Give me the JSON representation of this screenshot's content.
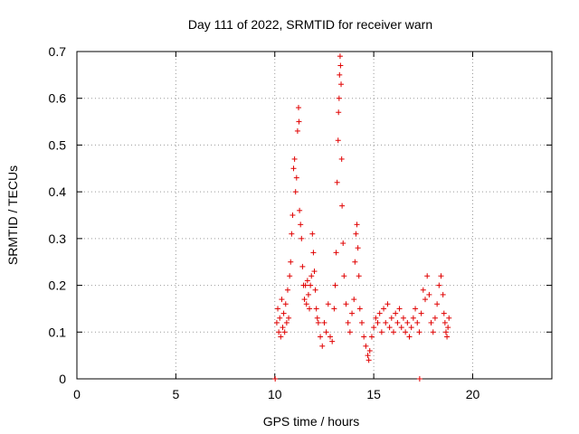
{
  "chart_data": {
    "type": "scatter",
    "title": "Day 111 of 2022, SRMTID for receiver warn",
    "xlabel": "GPS time / hours",
    "ylabel": "SRMTID / TECUs",
    "xlim": [
      0,
      24
    ],
    "ylim": [
      0,
      0.7
    ],
    "x_ticks": [
      0,
      5,
      10,
      15,
      20
    ],
    "x_tick_labels": [
      "0",
      "5",
      "10",
      "15",
      "20"
    ],
    "y_ticks": [
      0,
      0.1,
      0.2,
      0.3,
      0.4,
      0.5,
      0.6,
      0.7
    ],
    "y_tick_labels": [
      "0",
      "0.1",
      "0.2",
      "0.3",
      "0.4",
      "0.5",
      "0.6",
      "0.7"
    ],
    "grid": true,
    "marker": "+",
    "colors": {
      "series": "#e00000",
      "grid": "#999999",
      "axis": "#000000"
    },
    "series": [
      {
        "name": "SRMTID",
        "points": [
          [
            10.02,
            0.0
          ],
          [
            17.32,
            0.0
          ],
          [
            10.1,
            0.12
          ],
          [
            10.15,
            0.15
          ],
          [
            10.2,
            0.1
          ],
          [
            10.25,
            0.13
          ],
          [
            10.3,
            0.09
          ],
          [
            10.35,
            0.17
          ],
          [
            10.4,
            0.11
          ],
          [
            10.45,
            0.14
          ],
          [
            10.5,
            0.1
          ],
          [
            10.55,
            0.16
          ],
          [
            10.6,
            0.12
          ],
          [
            10.65,
            0.19
          ],
          [
            10.7,
            0.13
          ],
          [
            10.75,
            0.22
          ],
          [
            10.8,
            0.25
          ],
          [
            10.85,
            0.31
          ],
          [
            10.9,
            0.35
          ],
          [
            10.95,
            0.45
          ],
          [
            11.0,
            0.47
          ],
          [
            11.05,
            0.4
          ],
          [
            11.1,
            0.43
          ],
          [
            11.15,
            0.53
          ],
          [
            11.2,
            0.58
          ],
          [
            11.22,
            0.55
          ],
          [
            11.25,
            0.36
          ],
          [
            11.3,
            0.33
          ],
          [
            11.35,
            0.3
          ],
          [
            11.4,
            0.24
          ],
          [
            11.45,
            0.2
          ],
          [
            11.5,
            0.17
          ],
          [
            11.55,
            0.2
          ],
          [
            11.6,
            0.16
          ],
          [
            11.65,
            0.21
          ],
          [
            11.7,
            0.18
          ],
          [
            11.75,
            0.15
          ],
          [
            11.8,
            0.2
          ],
          [
            11.85,
            0.22
          ],
          [
            11.9,
            0.31
          ],
          [
            11.95,
            0.27
          ],
          [
            12.0,
            0.23
          ],
          [
            12.05,
            0.19
          ],
          [
            12.1,
            0.15
          ],
          [
            12.15,
            0.13
          ],
          [
            12.2,
            0.12
          ],
          [
            12.3,
            0.09
          ],
          [
            12.4,
            0.07
          ],
          [
            12.5,
            0.12
          ],
          [
            12.6,
            0.1
          ],
          [
            12.7,
            0.16
          ],
          [
            12.8,
            0.09
          ],
          [
            12.9,
            0.08
          ],
          [
            13.0,
            0.15
          ],
          [
            13.05,
            0.2
          ],
          [
            13.1,
            0.27
          ],
          [
            13.15,
            0.42
          ],
          [
            13.2,
            0.51
          ],
          [
            13.22,
            0.57
          ],
          [
            13.25,
            0.6
          ],
          [
            13.27,
            0.65
          ],
          [
            13.3,
            0.69
          ],
          [
            13.32,
            0.67
          ],
          [
            13.35,
            0.63
          ],
          [
            13.38,
            0.47
          ],
          [
            13.4,
            0.37
          ],
          [
            13.45,
            0.29
          ],
          [
            13.5,
            0.22
          ],
          [
            13.6,
            0.16
          ],
          [
            13.7,
            0.12
          ],
          [
            13.8,
            0.1
          ],
          [
            13.9,
            0.14
          ],
          [
            14.0,
            0.17
          ],
          [
            14.05,
            0.25
          ],
          [
            14.1,
            0.31
          ],
          [
            14.15,
            0.33
          ],
          [
            14.2,
            0.28
          ],
          [
            14.25,
            0.22
          ],
          [
            14.3,
            0.15
          ],
          [
            14.4,
            0.12
          ],
          [
            14.5,
            0.09
          ],
          [
            14.6,
            0.07
          ],
          [
            14.7,
            0.05
          ],
          [
            14.75,
            0.04
          ],
          [
            14.8,
            0.06
          ],
          [
            14.9,
            0.09
          ],
          [
            15.0,
            0.11
          ],
          [
            15.1,
            0.13
          ],
          [
            15.2,
            0.12
          ],
          [
            15.3,
            0.14
          ],
          [
            15.4,
            0.1
          ],
          [
            15.5,
            0.15
          ],
          [
            15.6,
            0.12
          ],
          [
            15.7,
            0.16
          ],
          [
            15.8,
            0.11
          ],
          [
            15.9,
            0.13
          ],
          [
            16.0,
            0.1
          ],
          [
            16.1,
            0.14
          ],
          [
            16.2,
            0.12
          ],
          [
            16.3,
            0.15
          ],
          [
            16.4,
            0.11
          ],
          [
            16.5,
            0.13
          ],
          [
            16.6,
            0.1
          ],
          [
            16.7,
            0.12
          ],
          [
            16.8,
            0.09
          ],
          [
            16.9,
            0.11
          ],
          [
            17.0,
            0.13
          ],
          [
            17.1,
            0.15
          ],
          [
            17.2,
            0.12
          ],
          [
            17.3,
            0.1
          ],
          [
            17.4,
            0.14
          ],
          [
            17.5,
            0.19
          ],
          [
            17.6,
            0.17
          ],
          [
            17.7,
            0.22
          ],
          [
            17.8,
            0.18
          ],
          [
            17.9,
            0.12
          ],
          [
            18.0,
            0.1
          ],
          [
            18.1,
            0.13
          ],
          [
            18.2,
            0.16
          ],
          [
            18.3,
            0.2
          ],
          [
            18.4,
            0.22
          ],
          [
            18.5,
            0.18
          ],
          [
            18.55,
            0.14
          ],
          [
            18.6,
            0.12
          ],
          [
            18.65,
            0.1
          ],
          [
            18.7,
            0.09
          ],
          [
            18.75,
            0.11
          ],
          [
            18.8,
            0.13
          ]
        ]
      }
    ]
  }
}
